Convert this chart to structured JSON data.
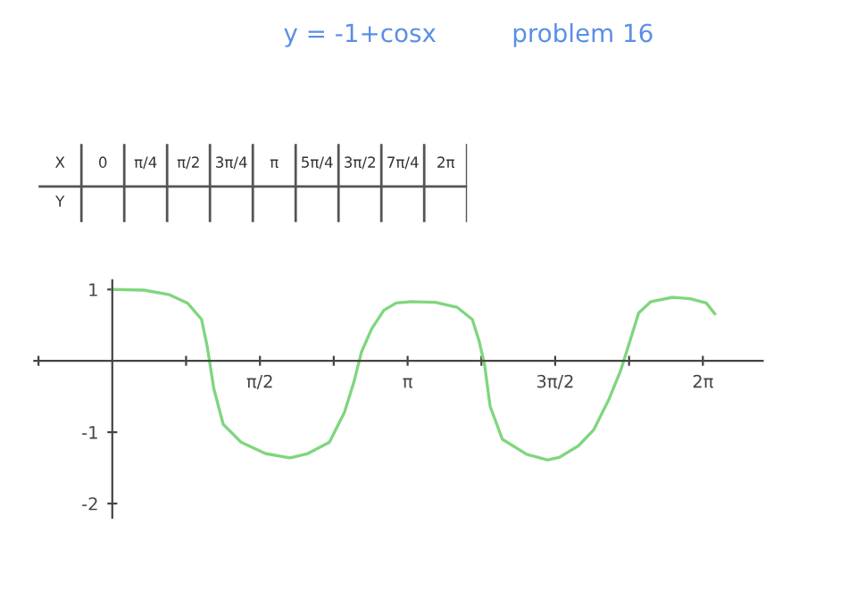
{
  "chart_data": {
    "type": "line",
    "title": "y = -1+cosx",
    "subtitle": "problem 16",
    "annotations": [
      "X",
      "0",
      "π/4",
      "π/2",
      "3π/4",
      "π",
      "5π/4",
      "3π/2",
      "7π/4",
      "2π",
      "Y"
    ],
    "series": [
      {
        "color": "#7fd67f",
        "x": [
          0,
          0.34,
          0.6,
          0.8,
          0.95,
          1.01,
          1.08,
          1.18,
          1.37,
          1.63,
          1.89,
          2.08,
          2.31,
          2.47,
          2.57,
          2.65,
          2.76,
          2.89,
          3.02,
          3.18,
          3.44,
          3.67,
          3.83,
          3.9,
          3.96,
          4.02,
          4.15,
          4.41,
          4.63,
          4.76,
          4.96,
          5.12,
          5.28,
          5.41,
          5.51,
          5.6,
          5.73,
          5.96,
          6.15,
          6.32,
          6.41
        ],
        "values": [
          1.0,
          0.99,
          0.93,
          0.81,
          0.58,
          0.2,
          -0.39,
          -0.89,
          -1.14,
          -1.3,
          -1.36,
          -1.3,
          -1.14,
          -0.72,
          -0.3,
          0.12,
          0.45,
          0.71,
          0.81,
          0.83,
          0.82,
          0.75,
          0.58,
          0.29,
          -0.05,
          -0.64,
          -1.1,
          -1.31,
          -1.39,
          -1.35,
          -1.19,
          -0.97,
          -0.55,
          -0.13,
          0.29,
          0.67,
          0.83,
          0.89,
          0.87,
          0.81,
          0.66
        ]
      }
    ],
    "xlim": [
      -0.83,
      6.92
    ],
    "ylim": [
      -2.2,
      1.13
    ],
    "xticks": [
      {
        "value": -0.785,
        "label": null
      },
      {
        "value": 0.785,
        "label": null
      },
      {
        "value": 1.571,
        "label": "π/2"
      },
      {
        "value": 2.356,
        "label": null
      },
      {
        "value": 3.142,
        "label": "π"
      },
      {
        "value": 3.927,
        "label": null
      },
      {
        "value": 4.712,
        "label": "3π/2"
      },
      {
        "value": 5.498,
        "label": null
      },
      {
        "value": 6.283,
        "label": "2π"
      }
    ],
    "yticks": [
      1,
      -1,
      -2
    ],
    "grid": false,
    "legend": false,
    "marker": "none",
    "line_style": "solid"
  }
}
